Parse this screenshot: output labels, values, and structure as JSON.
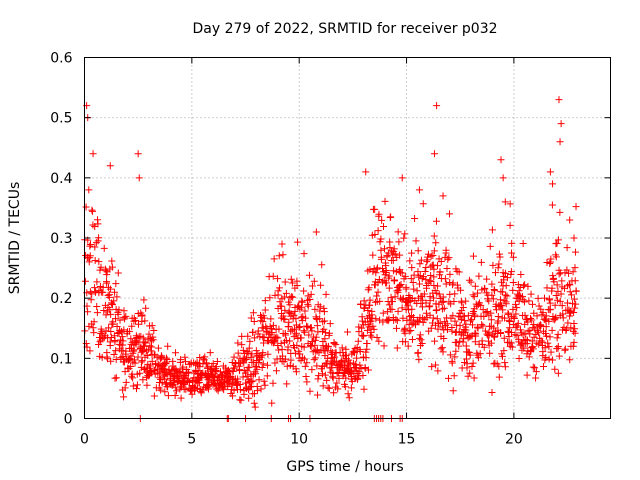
{
  "chart_data": {
    "type": "scatter",
    "title": "Day 279 of 2022, SRMTID for receiver p032",
    "xlabel": "GPS time / hours",
    "ylabel": "SRMTID / TECUs",
    "xlim": [
      0,
      24.5
    ],
    "ylim": [
      0,
      0.6
    ],
    "xticks": [
      0,
      5,
      10,
      15,
      20
    ],
    "xtick_labels": [
      "0",
      "5",
      "10",
      "15",
      "20"
    ],
    "yticks": [
      0,
      0.1,
      0.2,
      0.3,
      0.4,
      0.5,
      0.6
    ],
    "ytick_labels": [
      "0",
      "0.1",
      "0.2",
      "0.3",
      "0.4",
      "0.5",
      "0.6"
    ],
    "grid": true,
    "marker": "+",
    "marker_color": "#ff0000",
    "series": [
      {
        "name": "p032",
        "envelope": {
          "description": "approximate median and spread of SRMTID vs. hour read from scatter",
          "hours": [
            0.0,
            0.5,
            1.0,
            1.5,
            2.0,
            2.5,
            3.0,
            3.5,
            4.0,
            4.5,
            5.0,
            5.5,
            6.0,
            6.5,
            7.0,
            7.5,
            8.0,
            8.5,
            9.0,
            9.5,
            10.0,
            10.5,
            11.0,
            11.5,
            12.0,
            12.5,
            13.0,
            13.5,
            14.0,
            14.5,
            15.0,
            15.5,
            16.0,
            16.5,
            17.0,
            17.5,
            18.0,
            18.5,
            19.0,
            19.5,
            20.0,
            20.5,
            21.0,
            21.5,
            22.0,
            22.5,
            22.9
          ],
          "median": [
            0.2,
            0.22,
            0.17,
            0.13,
            0.11,
            0.12,
            0.1,
            0.08,
            0.07,
            0.07,
            0.07,
            0.07,
            0.07,
            0.06,
            0.07,
            0.07,
            0.09,
            0.13,
            0.15,
            0.16,
            0.15,
            0.14,
            0.13,
            0.1,
            0.08,
            0.09,
            0.12,
            0.22,
            0.24,
            0.23,
            0.2,
            0.2,
            0.22,
            0.2,
            0.16,
            0.16,
            0.15,
            0.18,
            0.15,
            0.18,
            0.17,
            0.16,
            0.12,
            0.15,
            0.22,
            0.18,
            0.19
          ],
          "spread": [
            0.16,
            0.14,
            0.09,
            0.07,
            0.05,
            0.06,
            0.05,
            0.03,
            0.03,
            0.03,
            0.03,
            0.03,
            0.02,
            0.02,
            0.03,
            0.05,
            0.06,
            0.09,
            0.08,
            0.07,
            0.07,
            0.08,
            0.07,
            0.04,
            0.03,
            0.04,
            0.06,
            0.1,
            0.09,
            0.09,
            0.08,
            0.08,
            0.09,
            0.1,
            0.09,
            0.08,
            0.07,
            0.08,
            0.08,
            0.11,
            0.08,
            0.06,
            0.05,
            0.07,
            0.1,
            0.08,
            0.08
          ],
          "zero_points_hours": [
            2.6,
            6.65,
            6.7,
            7.5,
            8.7,
            9.5,
            9.6,
            10.5,
            13.5,
            13.6,
            13.7,
            13.8,
            13.9,
            14.3,
            14.7,
            14.8
          ]
        },
        "highlights": [
          {
            "x": 0.1,
            "y": 0.52
          },
          {
            "x": 0.15,
            "y": 0.5
          },
          {
            "x": 0.4,
            "y": 0.44
          },
          {
            "x": 0.2,
            "y": 0.38
          },
          {
            "x": 2.5,
            "y": 0.44
          },
          {
            "x": 2.55,
            "y": 0.4
          },
          {
            "x": 1.2,
            "y": 0.42
          },
          {
            "x": 9.2,
            "y": 0.29
          },
          {
            "x": 10.8,
            "y": 0.31
          },
          {
            "x": 13.1,
            "y": 0.41
          },
          {
            "x": 14.8,
            "y": 0.4
          },
          {
            "x": 15.6,
            "y": 0.38
          },
          {
            "x": 16.4,
            "y": 0.52
          },
          {
            "x": 16.3,
            "y": 0.44
          },
          {
            "x": 16.7,
            "y": 0.37
          },
          {
            "x": 17.0,
            "y": 0.34
          },
          {
            "x": 19.4,
            "y": 0.43
          },
          {
            "x": 19.5,
            "y": 0.4
          },
          {
            "x": 19.6,
            "y": 0.36
          },
          {
            "x": 21.7,
            "y": 0.41
          },
          {
            "x": 21.8,
            "y": 0.39
          },
          {
            "x": 22.1,
            "y": 0.53
          },
          {
            "x": 22.2,
            "y": 0.49
          },
          {
            "x": 22.15,
            "y": 0.46
          },
          {
            "x": 22.6,
            "y": 0.33
          },
          {
            "x": 22.8,
            "y": 0.3
          }
        ]
      }
    ]
  }
}
